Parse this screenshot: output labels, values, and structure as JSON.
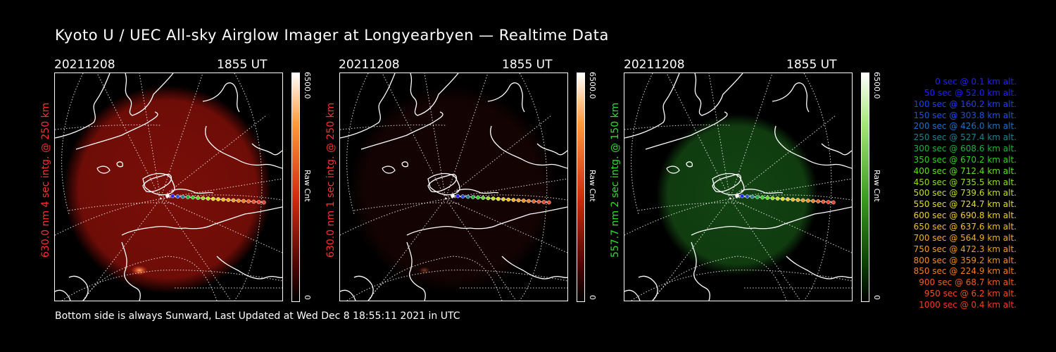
{
  "title": "Kyoto U / UEC All-sky Airglow Imager at Longyearbyen — Realtime Data",
  "footer": "Bottom side is always Sunward, Last Updated at Wed Dec  8 18:55:11 2021 in UTC",
  "panels": [
    {
      "date": "20211208",
      "time": "1855 UT",
      "ylabel": "630.0 nm 4 sec intg. @ 250 km",
      "label_color": "#ff3030",
      "scale_max": "6500.0",
      "scale_min": "0",
      "scale_unit": "Raw Cnt",
      "glow_color": "#7a0e08",
      "intensity": 1.0
    },
    {
      "date": "20211208",
      "time": "1855 UT",
      "ylabel": "630.0 nm 1 sec intg. @ 250 km",
      "label_color": "#ff3030",
      "scale_max": "6500.0",
      "scale_min": "0",
      "scale_unit": "Raw Cnt",
      "glow_color": "#2a0606",
      "intensity": 0.5
    },
    {
      "date": "20211208",
      "time": "1855 UT",
      "ylabel": "557.7 nm 2 sec intg. @ 150 km",
      "label_color": "#30e030",
      "scale_max": "6500.0",
      "scale_min": "0",
      "scale_unit": "Raw Cnt",
      "glow_color": "#144a14",
      "intensity": 0.9
    }
  ],
  "legend": [
    {
      "text": "0 sec @    0.1 km alt.",
      "color": "#2020ff"
    },
    {
      "text": "50 sec @   52.0 km alt.",
      "color": "#2020ff"
    },
    {
      "text": "100 sec @  160.2 km alt.",
      "color": "#2040f0"
    },
    {
      "text": "150 sec @  303.8 km alt.",
      "color": "#2050e0"
    },
    {
      "text": "200 sec @  426.0 km alt.",
      "color": "#2070c0"
    },
    {
      "text": "250 sec @  527.4 km alt.",
      "color": "#208090"
    },
    {
      "text": "300 sec @  608.6 km alt.",
      "color": "#20b040"
    },
    {
      "text": "350 sec @  670.2 km alt.",
      "color": "#30d020"
    },
    {
      "text": "400 sec @  712.4 km alt.",
      "color": "#60e020"
    },
    {
      "text": "450 sec @  735.5 km alt.",
      "color": "#90e020"
    },
    {
      "text": "500 sec @  739.6 km alt.",
      "color": "#c0e020"
    },
    {
      "text": "550 sec @  724.7 km alt.",
      "color": "#e0e020"
    },
    {
      "text": "600 sec @  690.8 km alt.",
      "color": "#f0d020"
    },
    {
      "text": "650 sec @  637.6 km alt.",
      "color": "#f0c020"
    },
    {
      "text": "700 sec @  564.9 km alt.",
      "color": "#f0b020"
    },
    {
      "text": "750 sec @  472.3 km alt.",
      "color": "#f0a020"
    },
    {
      "text": "800 sec @  359.2 km alt.",
      "color": "#f09020"
    },
    {
      "text": "850 sec @  224.9 km alt.",
      "color": "#f08020"
    },
    {
      "text": "900 sec @   68.7 km alt.",
      "color": "#f06020"
    },
    {
      "text": "950 sec @    6.2 km alt.",
      "color": "#f05020"
    },
    {
      "text": "1000 sec @    0.4 km alt.",
      "color": "#f04020"
    }
  ]
}
